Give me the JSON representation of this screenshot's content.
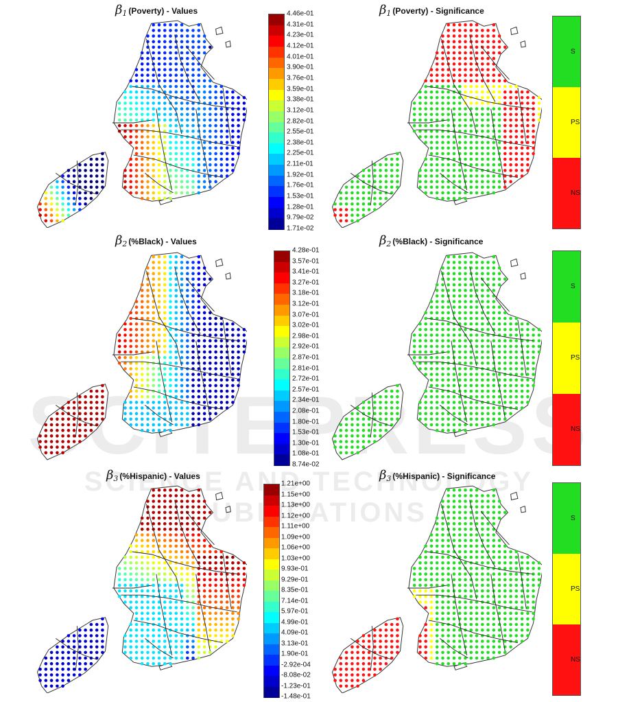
{
  "panels": [
    {
      "title_main": "β",
      "title_sub": "1",
      "title_rest": "(Poverty) - Values",
      "kind": "values",
      "pattern": "poverty"
    },
    {
      "title_main": "β",
      "title_sub": "1",
      "title_rest": "(Poverty) - Significance",
      "kind": "sig",
      "pattern": "poverty_sig"
    },
    {
      "title_main": "β",
      "title_sub": "2",
      "title_rest": "(%Black) - Values",
      "kind": "values",
      "pattern": "black"
    },
    {
      "title_main": "β",
      "title_sub": "2",
      "title_rest": "(%Black) - Significance",
      "kind": "sig",
      "pattern": "black_sig"
    },
    {
      "title_main": "β",
      "title_sub": "3",
      "title_rest": "(%Hispanic) - Values",
      "kind": "values",
      "pattern": "hispanic"
    },
    {
      "title_main": "β",
      "title_sub": "3",
      "title_rest": "(%Hispanic) - Significance",
      "kind": "sig",
      "pattern": "hispanic_sig"
    }
  ],
  "colorbars": [
    {
      "labels": [
        "4.46e-01",
        "4.31e-01",
        "4.23e-01",
        "4.12e-01",
        "4.01e-01",
        "3.90e-01",
        "3.76e-01",
        "3.59e-01",
        "3.38e-01",
        "3.12e-01",
        "2.82e-01",
        "2.55e-01",
        "2.38e-01",
        "2.25e-01",
        "2.11e-01",
        "1.92e-01",
        "1.76e-01",
        "1.53e-01",
        "1.28e-01",
        "9.79e-02",
        "1.71e-02"
      ]
    },
    {
      "labels": [
        "4.28e-01",
        "3.57e-01",
        "3.41e-01",
        "3.27e-01",
        "3.18e-01",
        "3.12e-01",
        "3.07e-01",
        "3.02e-01",
        "2.98e-01",
        "2.92e-01",
        "2.87e-01",
        "2.81e-01",
        "2.72e-01",
        "2.57e-01",
        "2.34e-01",
        "2.08e-01",
        "1.80e-01",
        "1.53e-01",
        "1.30e-01",
        "1.08e-01",
        "8.74e-02"
      ]
    },
    {
      "labels": [
        "1.21e+00",
        "1.15e+00",
        "1.13e+00",
        "1.12e+00",
        "1.11e+00",
        "1.09e+00",
        "1.06e+00",
        "1.03e+00",
        "9.93e-01",
        "9.29e-01",
        "8.35e-01",
        "7.14e-01",
        "5.97e-01",
        "4.99e-01",
        "4.09e-01",
        "3.13e-01",
        "1.90e-01",
        "-2.92e-04",
        "-8.08e-02",
        "-1.23e-01",
        "-1.48e-01"
      ]
    }
  ],
  "significance_legend": {
    "top": "S",
    "mid": "PS",
    "bottom": "NS"
  },
  "colors": {
    "sig_s": "#22dd22",
    "sig_ps": "#ffff00",
    "sig_ns": "#ff1111"
  },
  "watermark": {
    "main": "SCITEPRESS",
    "sub": "SCIENCE AND TECHNOLOGY PUBLICATIONS"
  }
}
